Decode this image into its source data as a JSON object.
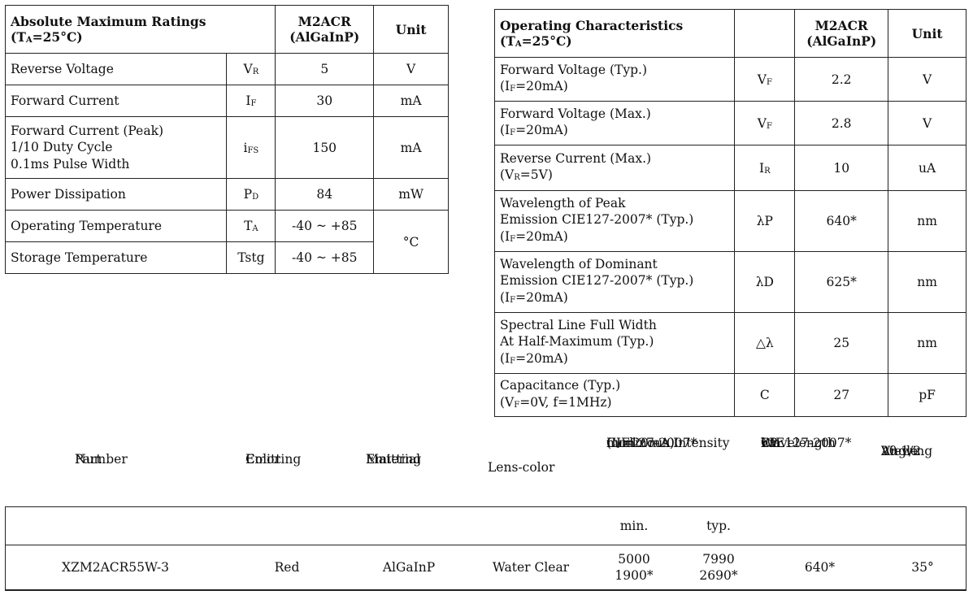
{
  "abs_max": {
    "title": "Absolute Maximum Ratings",
    "condition_prefix": "(T",
    "condition_sub": "A",
    "condition_suffix": "=25°C)",
    "col_model_line1": "M2ACR",
    "col_model_line2": "(AlGaInP)",
    "col_unit": "Unit",
    "rows": [
      {
        "param": [
          "Reverse Voltage"
        ],
        "sym": "V",
        "sym_sub": "R",
        "value": "5",
        "unit": "V"
      },
      {
        "param": [
          "Forward Current"
        ],
        "sym": "I",
        "sym_sub": "F",
        "value": "30",
        "unit": "mA"
      },
      {
        "param": [
          "Forward Current (Peak)",
          "1/10 Duty Cycle",
          "0.1ms Pulse Width"
        ],
        "sym": "i",
        "sym_sub": "FS",
        "value": "150",
        "unit": "mA"
      },
      {
        "param": [
          "Power Dissipation"
        ],
        "sym": "P",
        "sym_sub": "D",
        "value": "84",
        "unit": "mW"
      },
      {
        "param": [
          "Operating Temperature"
        ],
        "sym": "T",
        "sym_sub": "A",
        "value": "-40 ~ +85",
        "unit": "°C"
      },
      {
        "param": [
          "Storage Temperature"
        ],
        "sym": "Tstg",
        "sym_sub": "",
        "value": "-40 ~ +85",
        "unit": ""
      }
    ]
  },
  "op_char": {
    "title": "Operating Characteristics",
    "condition_prefix": "(T",
    "condition_sub": "A",
    "condition_suffix": "=25°C)",
    "col_model_line1": "M2ACR",
    "col_model_line2": "(AlGaInP)",
    "col_unit": "Unit",
    "rows": [
      {
        "param": [
          "Forward Voltage (Typ.)"
        ],
        "cond_pre": "(I",
        "cond_sub": "F",
        "cond_post": "=20mA)",
        "sym": "V",
        "sym_sub": "F",
        "value": "2.2",
        "unit": "V"
      },
      {
        "param": [
          "Forward Voltage (Max.)"
        ],
        "cond_pre": "(I",
        "cond_sub": "F",
        "cond_post": "=20mA)",
        "sym": "V",
        "sym_sub": "F",
        "value": "2.8",
        "unit": "V"
      },
      {
        "param": [
          "Reverse Current (Max.)"
        ],
        "cond_pre": "(V",
        "cond_sub": "R",
        "cond_post": "=5V)",
        "sym": "I",
        "sym_sub": "R",
        "value": "10",
        "unit": "uA"
      },
      {
        "param": [
          "Wavelength of Peak",
          "Emission CIE127-2007*  (Typ.)"
        ],
        "cond_pre": "(I",
        "cond_sub": "F",
        "cond_post": "=20mA)",
        "sym": "λP",
        "sym_sub": "",
        "value": "640*",
        "unit": "nm"
      },
      {
        "param": [
          "Wavelength of Dominant",
          "Emission CIE127-2007*  (Typ.)"
        ],
        "cond_pre": "(I",
        "cond_sub": "F",
        "cond_post": "=20mA)",
        "sym": "λD",
        "sym_sub": "",
        "value": "625*",
        "unit": "nm"
      },
      {
        "param": [
          "Spectral Line Full Width",
          "At Half-Maximum (Typ.)"
        ],
        "cond_pre": "(I",
        "cond_sub": "F",
        "cond_post": "=20mA)",
        "sym": "△λ",
        "sym_sub": "",
        "value": "25",
        "unit": "nm"
      },
      {
        "param": [
          "Capacitance (Typ.)"
        ],
        "cond_pre": "(V",
        "cond_sub": "F",
        "cond_post": "=0V, f=1MHz)",
        "sym": "C",
        "sym_sub": "",
        "value": "27",
        "unit": "pF"
      }
    ]
  },
  "part_table": {
    "headers": {
      "part_number": [
        "Part",
        "Number"
      ],
      "emitting_color": [
        "Emitting",
        "Color"
      ],
      "emitting_material": [
        "Emitting",
        "Material"
      ],
      "lens_color": [
        "Lens-color"
      ],
      "luminous": [
        "Luminous Intensity",
        "CIE127-2007*",
        "(I_F=20mA)",
        "mcd"
      ],
      "wavelength": [
        "Wavelength",
        "CIE127-2007*",
        "nm",
        "λP"
      ],
      "viewing": [
        "Viewing",
        "Angle",
        "2θ 1/2"
      ]
    },
    "sub_min": "min.",
    "sub_typ": "typ.",
    "row": {
      "part_number": "XZM2ACR55W-3",
      "color": "Red",
      "material": "AlGaInP",
      "lens": "Water Clear",
      "lum_min": [
        "5000",
        "1900*"
      ],
      "lum_typ": [
        "7990",
        "2690*"
      ],
      "wavelength": "640*",
      "viewing_angle": "35°"
    }
  }
}
